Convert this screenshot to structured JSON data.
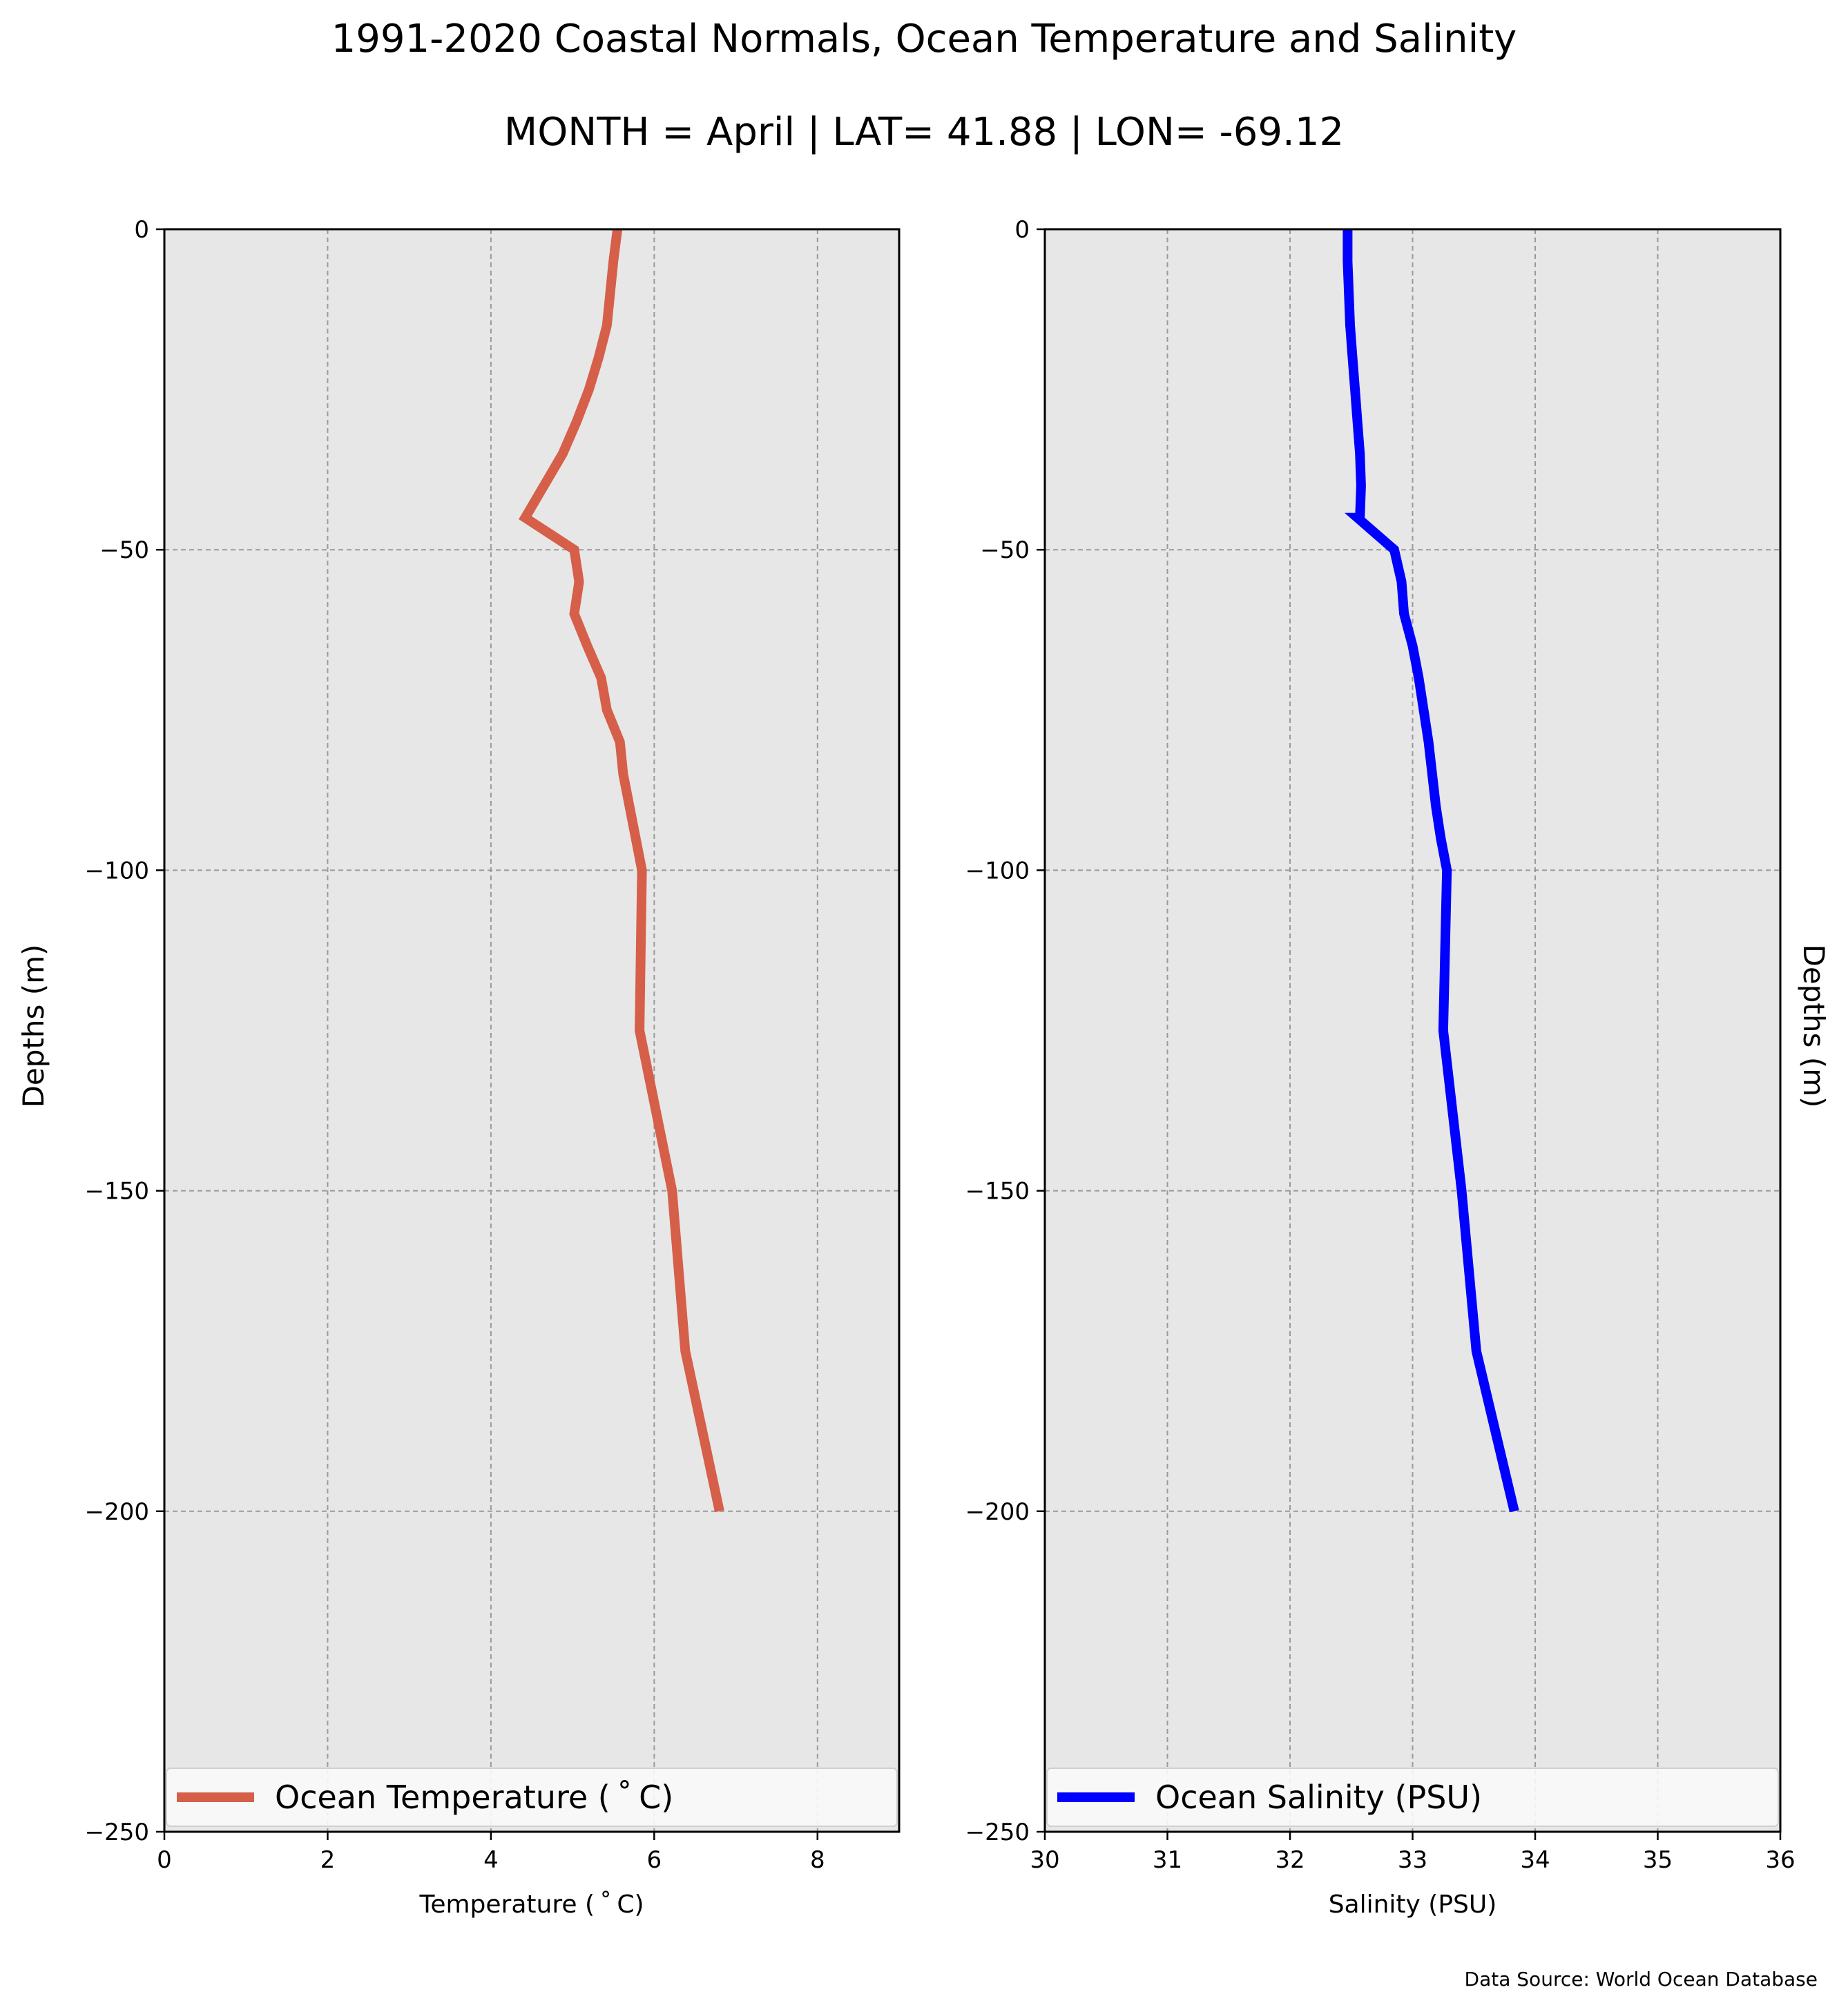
{
  "title": "1991-2020 Coastal Normals, Ocean Temperature and Salinity",
  "subtitle": "MONTH = April | LAT= 41.88 | LON= -69.12",
  "source": "Data Source: World Ocean Database",
  "colors": {
    "temperature": "#d65f4a",
    "salinity": "#0000ff",
    "plot_bg": "#e7e7e7",
    "grid": "#9a9a9a"
  },
  "chart_data": [
    {
      "type": "line",
      "xlabel": "Temperature ($^\\circ$C)",
      "xlabel_display": "Temperature ( ˚ C)",
      "ylabel": "Depths (m)",
      "xlim": [
        0,
        9
      ],
      "ylim": [
        -250,
        0
      ],
      "xticks": [
        0,
        2,
        4,
        6,
        8
      ],
      "xtick_labels": [
        "0",
        "2",
        "4",
        "6",
        "8"
      ],
      "yticks": [
        0,
        -50,
        -100,
        -150,
        -200,
        -250
      ],
      "ytick_labels": [
        "0",
        "−50",
        "−100",
        "−150",
        "−200",
        "−250"
      ],
      "grid": true,
      "legend": "bottom",
      "series": [
        {
          "name": "Ocean Temperature ( ˚ C)",
          "x": [
            5.55,
            5.5,
            5.42,
            5.32,
            5.2,
            5.05,
            4.88,
            4.65,
            4.42,
            5.02,
            5.08,
            5.02,
            5.18,
            5.35,
            5.42,
            5.58,
            5.62,
            5.85,
            5.82,
            6.22,
            6.38,
            6.8
          ],
          "y": [
            0,
            -5,
            -15,
            -20,
            -25,
            -30,
            -35,
            -40,
            -45,
            -50,
            -55,
            -60,
            -65,
            -70,
            -75,
            -80,
            -85,
            -100,
            -125,
            -150,
            -175,
            -200
          ]
        }
      ]
    },
    {
      "type": "line",
      "xlabel": "Salinity (PSU)",
      "ylabel": "Depths (m)",
      "xlim": [
        30,
        36
      ],
      "ylim": [
        -250,
        0
      ],
      "xticks": [
        30,
        31,
        32,
        33,
        34,
        35,
        36
      ],
      "xtick_labels": [
        "30",
        "31",
        "32",
        "33",
        "34",
        "35",
        "36"
      ],
      "yticks": [
        0,
        -50,
        -100,
        -150,
        -200,
        -250
      ],
      "ytick_labels": [
        "0",
        "−50",
        "−100",
        "−150",
        "−200",
        "−250"
      ],
      "grid": true,
      "legend": "bottom",
      "series": [
        {
          "name": "Ocean Salinity (PSU)",
          "x": [
            32.47,
            32.47,
            32.49,
            32.51,
            32.53,
            32.55,
            32.57,
            32.58,
            32.57,
            32.55,
            32.85,
            32.91,
            32.93,
            33.0,
            33.05,
            33.09,
            33.13,
            33.19,
            33.23,
            33.28,
            33.25,
            33.4,
            33.52,
            33.83
          ],
          "y": [
            0,
            -5,
            -15,
            -20,
            -25,
            -30,
            -35,
            -40,
            -45,
            -45,
            -50,
            -55,
            -60,
            -65,
            -70,
            -75,
            -80,
            -90,
            -95,
            -100,
            -125,
            -150,
            -175,
            -200
          ]
        }
      ]
    }
  ]
}
